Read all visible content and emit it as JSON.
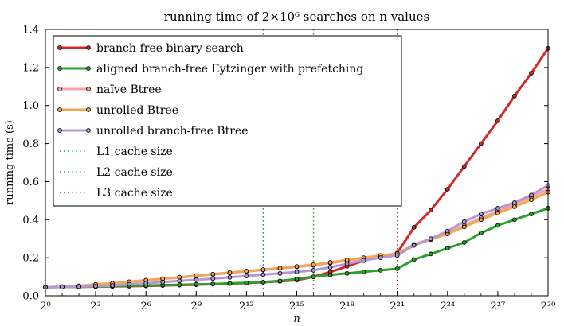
{
  "chart_data": {
    "type": "line",
    "title": "running time of 2×10⁶ searches on n values",
    "xlabel": "n",
    "ylabel": "running time (s)",
    "x_scale": "log2",
    "x_exponents": [
      0,
      30
    ],
    "xtick_exponents": [
      0,
      3,
      6,
      9,
      12,
      15,
      18,
      21,
      24,
      27,
      30
    ],
    "xtick_labels": [
      "2⁰",
      "2³",
      "2⁶",
      "2⁹",
      "2¹²",
      "2¹⁵",
      "2¹⁸",
      "2²¹",
      "2²⁴",
      "2²⁷",
      "2³⁰"
    ],
    "ylim": [
      0.0,
      1.4
    ],
    "yticks": [
      0.0,
      0.2,
      0.4,
      0.6,
      0.8,
      1.0,
      1.2,
      1.4
    ],
    "ytick_labels": [
      "0.0",
      "0.2",
      "0.4",
      "0.6",
      "0.8",
      "1.0",
      "1.2",
      "1.4"
    ],
    "grid": false,
    "legend_position": "top-left",
    "series": [
      {
        "name": "branch-free binary search",
        "color": "#d62728",
        "x_exponents": [
          0,
          1,
          2,
          3,
          4,
          5,
          6,
          7,
          8,
          9,
          10,
          11,
          12,
          13,
          14,
          15,
          16,
          17,
          18,
          19,
          20,
          21,
          22,
          23,
          24,
          25,
          26,
          27,
          28,
          29,
          30
        ],
        "values": [
          0.045,
          0.046,
          0.047,
          0.048,
          0.049,
          0.05,
          0.052,
          0.054,
          0.056,
          0.058,
          0.061,
          0.064,
          0.067,
          0.071,
          0.076,
          0.082,
          0.1,
          0.125,
          0.155,
          0.185,
          0.205,
          0.225,
          0.36,
          0.45,
          0.56,
          0.68,
          0.8,
          0.92,
          1.05,
          1.17,
          1.3
        ]
      },
      {
        "name": "aligned branch-free Eytzinger with prefetching",
        "color": "#2ca02c",
        "x_exponents": [
          0,
          1,
          2,
          3,
          4,
          5,
          6,
          7,
          8,
          9,
          10,
          11,
          12,
          13,
          14,
          15,
          16,
          17,
          18,
          19,
          20,
          21,
          22,
          23,
          24,
          25,
          26,
          27,
          28,
          29,
          30
        ],
        "values": [
          0.045,
          0.046,
          0.047,
          0.048,
          0.05,
          0.052,
          0.054,
          0.056,
          0.058,
          0.06,
          0.062,
          0.065,
          0.068,
          0.072,
          0.078,
          0.088,
          0.1,
          0.11,
          0.118,
          0.126,
          0.134,
          0.142,
          0.19,
          0.22,
          0.25,
          0.28,
          0.33,
          0.37,
          0.4,
          0.43,
          0.46
        ]
      },
      {
        "name": "naïve Btree",
        "color": "#f4a3a8",
        "x_exponents": [
          0,
          1,
          2,
          3,
          4,
          5,
          6,
          7,
          8,
          9,
          10,
          11,
          12,
          13,
          14,
          15,
          16,
          17,
          18,
          19,
          20,
          21,
          22,
          23,
          24,
          25,
          26,
          27,
          28,
          29,
          30
        ],
        "values": [
          0.045,
          0.048,
          0.052,
          0.058,
          0.064,
          0.072,
          0.08,
          0.088,
          0.096,
          0.104,
          0.112,
          0.12,
          0.128,
          0.136,
          0.144,
          0.152,
          0.16,
          0.172,
          0.184,
          0.196,
          0.208,
          0.22,
          0.27,
          0.3,
          0.33,
          0.37,
          0.41,
          0.445,
          0.48,
          0.52,
          0.56
        ]
      },
      {
        "name": "unrolled Btree",
        "color": "#f5a652",
        "x_exponents": [
          0,
          1,
          2,
          3,
          4,
          5,
          6,
          7,
          8,
          9,
          10,
          11,
          12,
          13,
          14,
          15,
          16,
          17,
          18,
          19,
          20,
          21,
          22,
          23,
          24,
          25,
          26,
          27,
          28,
          29,
          30
        ],
        "values": [
          0.045,
          0.048,
          0.052,
          0.06,
          0.066,
          0.074,
          0.082,
          0.09,
          0.098,
          0.106,
          0.114,
          0.122,
          0.13,
          0.138,
          0.146,
          0.154,
          0.164,
          0.176,
          0.188,
          0.2,
          0.212,
          0.222,
          0.268,
          0.295,
          0.325,
          0.362,
          0.4,
          0.435,
          0.468,
          0.505,
          0.545
        ]
      },
      {
        "name": "unrolled branch-free Btree",
        "color": "#b399d4",
        "x_exponents": [
          0,
          1,
          2,
          3,
          4,
          5,
          6,
          7,
          8,
          9,
          10,
          11,
          12,
          13,
          14,
          15,
          16,
          17,
          18,
          19,
          20,
          21,
          22,
          23,
          24,
          25,
          26,
          27,
          28,
          29,
          30
        ],
        "values": [
          0.045,
          0.046,
          0.048,
          0.05,
          0.054,
          0.06,
          0.066,
          0.072,
          0.078,
          0.084,
          0.09,
          0.097,
          0.104,
          0.111,
          0.118,
          0.126,
          0.134,
          0.15,
          0.168,
          0.186,
          0.2,
          0.212,
          0.265,
          0.3,
          0.34,
          0.39,
          0.43,
          0.46,
          0.49,
          0.53,
          0.58
        ]
      }
    ],
    "reference_lines": [
      {
        "name": "L1 cache size",
        "x_exponent": 13,
        "color": "#1f77b4"
      },
      {
        "name": "L2 cache size",
        "x_exponent": 16,
        "color": "#2ca02c"
      },
      {
        "name": "L3 cache size",
        "x_exponent": 21,
        "color": "#d62728"
      }
    ]
  }
}
